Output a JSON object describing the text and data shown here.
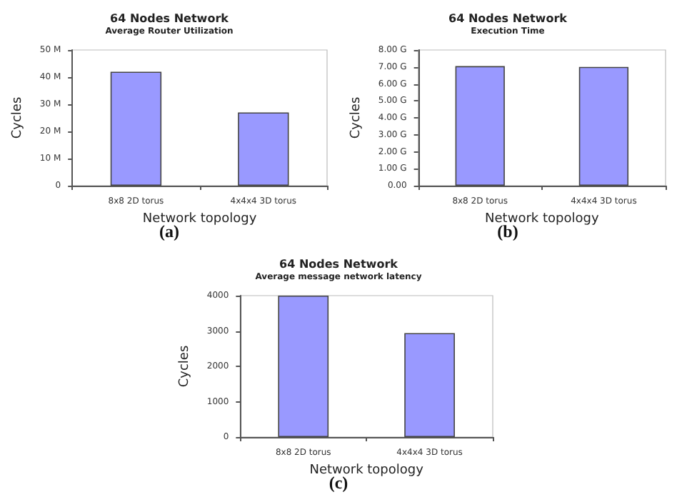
{
  "chart_data": [
    {
      "type": "bar",
      "title": "64 Nodes Network",
      "subtitle": "Average Router Utilization",
      "xlabel": "Network topology",
      "ylabel": "Cycles",
      "annotations": [
        "(a)"
      ],
      "categories": [
        "8x8 2D torus",
        "4x4x4 3D torus"
      ],
      "values": [
        42,
        27
      ],
      "color": "#9999ff",
      "ylim": [
        0,
        50
      ],
      "yticks": [
        0,
        {
          "value": 10,
          "label": "10 M"
        },
        {
          "value": 20,
          "label": "20 M"
        },
        {
          "value": 30,
          "label": "30 M"
        },
        {
          "value": 40,
          "label": "40 M"
        },
        {
          "value": 50,
          "label": "50 M"
        }
      ],
      "grid": false
    },
    {
      "type": "bar",
      "title": "64 Nodes Network",
      "subtitle": "Execution Time",
      "xlabel": "Network topology",
      "ylabel": "Cycles",
      "annotations": [
        "(b)"
      ],
      "categories": [
        "8x8 2D torus",
        "4x4x4 3D torus"
      ],
      "values": [
        7.05,
        7.0
      ],
      "color": "#9999ff",
      "ylim": [
        0,
        8
      ],
      "yticks": [
        {
          "value": 0,
          "label": "0.00"
        },
        {
          "value": 1,
          "label": "1.00 G"
        },
        {
          "value": 2,
          "label": "2.00 G"
        },
        {
          "value": 3,
          "label": "3.00 G"
        },
        {
          "value": 4,
          "label": "4.00 G"
        },
        {
          "value": 5,
          "label": "5.00 G"
        },
        {
          "value": 6,
          "label": "6.00 G"
        },
        {
          "value": 7,
          "label": "7.00 G"
        },
        {
          "value": 8,
          "label": "8.00 G"
        }
      ],
      "grid": false
    },
    {
      "type": "bar",
      "title": "64 Nodes Network",
      "subtitle": "Average message network latency",
      "xlabel": "Network topology",
      "ylabel": "Cycles",
      "annotations": [
        "(c)"
      ],
      "categories": [
        "8x8 2D torus",
        "4x4x4 3D torus"
      ],
      "values": [
        4000,
        2940
      ],
      "color": "#9999ff",
      "ylim": [
        0,
        4000
      ],
      "yticks": [
        0,
        1000,
        2000,
        3000,
        4000
      ],
      "grid": false
    }
  ]
}
